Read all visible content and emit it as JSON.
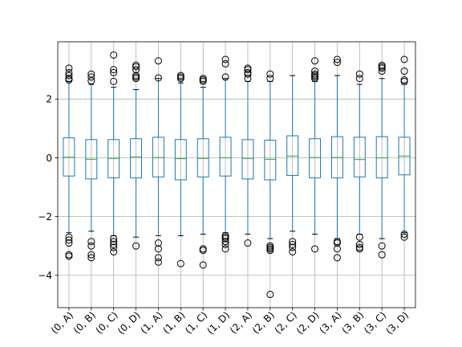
{
  "chart_data": {
    "type": "box",
    "title": "",
    "xlabel": "",
    "ylabel": "",
    "ylim": [
      -5.1,
      3.95
    ],
    "y_ticks": [
      {
        "value": -4,
        "label": "−4"
      },
      {
        "value": -2,
        "label": "−2"
      },
      {
        "value": 0,
        "label": "0"
      },
      {
        "value": 2,
        "label": "2"
      }
    ],
    "grid": true,
    "categories": [
      "(0, A)",
      "(0, B)",
      "(0, C)",
      "(0, D)",
      "(1, A)",
      "(1, B)",
      "(1, C)",
      "(1, D)",
      "(2, A)",
      "(2, B)",
      "(2, C)",
      "(2, D)",
      "(3, A)",
      "(3, B)",
      "(3, C)",
      "(3, D)"
    ],
    "boxes": [
      {
        "q1": -0.62,
        "median": 0.02,
        "q3": 0.68,
        "whisker_low": -2.55,
        "whisker_high": 2.6,
        "outliers": [
          3.05,
          2.9,
          2.8,
          2.7,
          2.65,
          -2.7,
          -2.8,
          -2.9,
          -3.3,
          -3.35
        ]
      },
      {
        "q1": -0.72,
        "median": -0.05,
        "q3": 0.62,
        "whisker_low": -2.5,
        "whisker_high": 2.5,
        "outliers": [
          2.85,
          2.75,
          2.62,
          -2.85,
          -3.0,
          -3.3,
          -3.4
        ]
      },
      {
        "q1": -0.68,
        "median": -0.02,
        "q3": 0.62,
        "whisker_low": -2.65,
        "whisker_high": 2.4,
        "outliers": [
          3.5,
          3.0,
          2.9,
          2.6,
          -2.75,
          -2.85,
          -2.95,
          -3.05,
          -3.2
        ]
      },
      {
        "q1": -0.68,
        "median": 0.03,
        "q3": 0.65,
        "whisker_low": -2.7,
        "whisker_high": 2.32,
        "outliers": [
          3.15,
          3.1,
          3.0,
          2.8,
          2.75,
          2.7,
          -3.0
        ]
      },
      {
        "q1": -0.65,
        "median": 0.01,
        "q3": 0.7,
        "whisker_low": -2.65,
        "whisker_high": 2.7,
        "outliers": [
          3.3,
          2.72,
          -2.9,
          -3.1,
          -3.4,
          -3.55
        ]
      },
      {
        "q1": -0.75,
        "median": -0.03,
        "q3": 0.62,
        "whisker_low": -2.65,
        "whisker_high": 2.55,
        "outliers": [
          2.8,
          2.75,
          2.7,
          -3.6
        ]
      },
      {
        "q1": -0.65,
        "median": -0.02,
        "q3": 0.65,
        "whisker_low": -2.6,
        "whisker_high": 2.4,
        "outliers": [
          2.7,
          2.65,
          2.6,
          -3.1,
          -3.15,
          -3.65
        ]
      },
      {
        "q1": -0.62,
        "median": 0.0,
        "q3": 0.7,
        "whisker_low": -2.55,
        "whisker_high": 2.7,
        "outliers": [
          3.35,
          3.2,
          2.75,
          -2.65,
          -2.7,
          -2.75,
          -2.85,
          -2.95,
          -3.1
        ]
      },
      {
        "q1": -0.72,
        "median": -0.02,
        "q3": 0.62,
        "whisker_low": -2.6,
        "whisker_high": 2.6,
        "outliers": [
          3.05,
          3.0,
          2.9,
          2.85,
          2.7,
          -2.9
        ]
      },
      {
        "q1": -0.75,
        "median": -0.05,
        "q3": 0.6,
        "whisker_low": -2.75,
        "whisker_high": 2.6,
        "outliers": [
          2.85,
          2.7,
          -3.0,
          -3.05,
          -3.1,
          -3.15,
          -4.65
        ]
      },
      {
        "q1": -0.6,
        "median": 0.06,
        "q3": 0.75,
        "whisker_low": -2.5,
        "whisker_high": 2.8,
        "outliers": [
          -2.85,
          -2.95,
          -3.05,
          -3.2
        ]
      },
      {
        "q1": -0.68,
        "median": 0.01,
        "q3": 0.65,
        "whisker_low": -2.6,
        "whisker_high": 2.6,
        "outliers": [
          3.3,
          2.95,
          2.85,
          2.8,
          2.75,
          2.7,
          -3.1
        ]
      },
      {
        "q1": -0.68,
        "median": 0.01,
        "q3": 0.72,
        "whisker_low": -2.75,
        "whisker_high": 2.8,
        "outliers": [
          3.35,
          3.25,
          -2.85,
          -2.9,
          -3.1,
          -3.4
        ]
      },
      {
        "q1": -0.65,
        "median": -0.06,
        "q3": 0.7,
        "whisker_low": -2.6,
        "whisker_high": 2.5,
        "outliers": [
          2.85,
          2.7,
          -2.7,
          -2.95,
          -3.05,
          -3.1
        ]
      },
      {
        "q1": -0.68,
        "median": 0.0,
        "q3": 0.72,
        "whisker_low": -2.75,
        "whisker_high": 2.7,
        "outliers": [
          3.15,
          3.1,
          3.05,
          2.95,
          -3.0,
          -3.3
        ]
      },
      {
        "q1": -0.58,
        "median": 0.06,
        "q3": 0.7,
        "whisker_low": -2.55,
        "whisker_high": 2.5,
        "outliers": [
          3.35,
          2.95,
          2.65,
          2.6,
          -2.6,
          -2.7
        ]
      }
    ],
    "colors": {
      "box": "#1f77b4",
      "median": "#2ca02c",
      "whisker": "#1f77b4",
      "cap": "#000000",
      "outlier": "#000000",
      "grid": "#b0b0b0",
      "axes": "#000000"
    }
  }
}
